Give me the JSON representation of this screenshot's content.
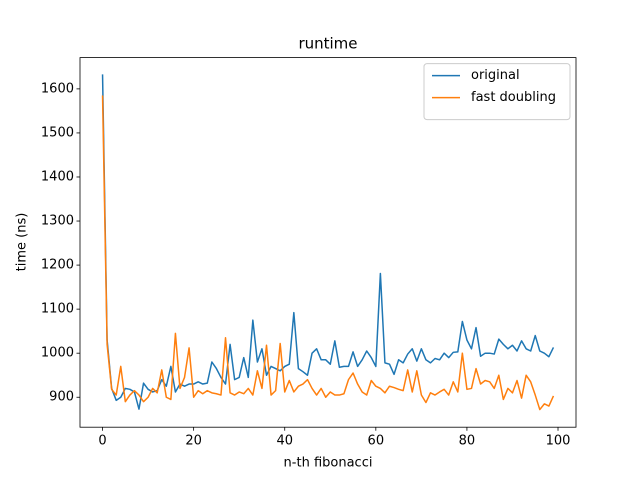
{
  "chart_data": {
    "type": "line",
    "title": "runtime",
    "xlabel": "n-th fibonacci",
    "ylabel": "time (ns)",
    "x": [
      0,
      1,
      2,
      3,
      4,
      5,
      6,
      7,
      8,
      9,
      10,
      11,
      12,
      13,
      14,
      15,
      16,
      17,
      18,
      19,
      20,
      21,
      22,
      23,
      24,
      25,
      26,
      27,
      28,
      29,
      30,
      31,
      32,
      33,
      34,
      35,
      36,
      37,
      38,
      39,
      40,
      41,
      42,
      43,
      44,
      45,
      46,
      47,
      48,
      49,
      50,
      51,
      52,
      53,
      54,
      55,
      56,
      57,
      58,
      59,
      60,
      61,
      62,
      63,
      64,
      65,
      66,
      67,
      68,
      69,
      70,
      71,
      72,
      73,
      74,
      75,
      76,
      77,
      78,
      79,
      80,
      81,
      82,
      83,
      84,
      85,
      86,
      87,
      88,
      89,
      90,
      91,
      92,
      93,
      94,
      95,
      96,
      97,
      98,
      99
    ],
    "series": [
      {
        "name": "original",
        "color": "#1f77b4",
        "values": [
          1633,
          1030,
          920,
          893,
          900,
          920,
          918,
          912,
          873,
          932,
          918,
          912,
          915,
          940,
          925,
          970,
          912,
          930,
          925,
          930,
          930,
          935,
          930,
          932,
          980,
          965,
          945,
          930,
          1020,
          940,
          945,
          990,
          945,
          1075,
          980,
          1010,
          950,
          970,
          965,
          960,
          970,
          975,
          1092,
          965,
          958,
          950,
          1000,
          1010,
          985,
          985,
          975,
          1028,
          968,
          970,
          970,
          1003,
          970,
          985,
          1005,
          990,
          970,
          1181,
          978,
          975,
          952,
          985,
          978,
          998,
          1010,
          982,
          1010,
          985,
          978,
          988,
          985,
          1000,
          990,
          1002,
          1003,
          1072,
          1030,
          1010,
          1058,
          993,
          1000,
          1000,
          998,
          1032,
          1020,
          1010,
          1018,
          1005,
          1028,
          1010,
          1005,
          1040,
          1005,
          1000,
          992,
          1013
        ]
      },
      {
        "name": "fast doubling",
        "color": "#ff7f0e",
        "values": [
          1585,
          1020,
          918,
          905,
          970,
          890,
          905,
          915,
          905,
          890,
          900,
          920,
          910,
          962,
          900,
          895,
          1045,
          920,
          945,
          1012,
          900,
          915,
          908,
          915,
          910,
          908,
          905,
          1035,
          910,
          905,
          912,
          908,
          920,
          905,
          960,
          920,
          1018,
          905,
          915,
          1022,
          912,
          938,
          912,
          925,
          930,
          940,
          920,
          905,
          920,
          900,
          912,
          905,
          905,
          908,
          940,
          955,
          930,
          912,
          905,
          938,
          925,
          920,
          910,
          925,
          922,
          918,
          915,
          962,
          912,
          960,
          905,
          888,
          910,
          905,
          912,
          918,
          905,
          935,
          912,
          1000,
          918,
          920,
          965,
          930,
          938,
          935,
          920,
          950,
          895,
          920,
          910,
          938,
          898,
          950,
          935,
          905,
          872,
          885,
          880,
          903
        ]
      }
    ],
    "xlim": [
      -4.95,
      103.95
    ],
    "ylim": [
      832,
      1671
    ],
    "xticks": [
      0,
      20,
      40,
      60,
      80,
      100
    ],
    "yticks": [
      900,
      1000,
      1100,
      1200,
      1300,
      1400,
      1500,
      1600
    ],
    "legend": "upper right",
    "grid": false
  }
}
